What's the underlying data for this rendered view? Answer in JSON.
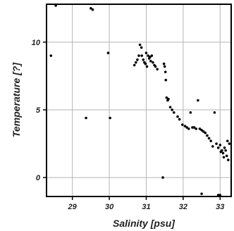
{
  "chart_data": {
    "type": "scatter",
    "title": "",
    "xlabel": "Salinity [psu]",
    "ylabel": "Temperature [?]",
    "xlim": [
      28.3,
      33.3
    ],
    "ylim": [
      -1.4,
      12.8
    ],
    "xticks": [
      29,
      30,
      31,
      32,
      33
    ],
    "yticks": [
      0,
      5,
      10
    ],
    "grid": true,
    "marker_color": "#000000",
    "series": [
      {
        "points": [
          [
            28.42,
            9.0
          ],
          [
            28.55,
            12.7
          ],
          [
            29.37,
            4.4
          ],
          [
            29.5,
            12.5
          ],
          [
            29.55,
            12.4
          ],
          [
            29.97,
            9.2
          ],
          [
            30.02,
            4.4
          ],
          [
            30.68,
            8.3
          ],
          [
            30.72,
            8.5
          ],
          [
            30.76,
            8.7
          ],
          [
            30.8,
            9.0
          ],
          [
            30.83,
            9.8
          ],
          [
            30.87,
            9.6
          ],
          [
            30.88,
            9.0
          ],
          [
            30.92,
            8.7
          ],
          [
            30.95,
            8.5
          ],
          [
            30.98,
            8.4
          ],
          [
            31.0,
            9.2
          ],
          [
            31.02,
            8.2
          ],
          [
            31.05,
            9.0
          ],
          [
            31.08,
            8.8
          ],
          [
            31.1,
            8.9
          ],
          [
            31.12,
            8.6
          ],
          [
            31.15,
            9.0
          ],
          [
            31.18,
            8.5
          ],
          [
            31.22,
            8.3
          ],
          [
            31.25,
            8.2
          ],
          [
            31.3,
            8.0
          ],
          [
            31.45,
            0.0
          ],
          [
            31.48,
            8.4
          ],
          [
            31.5,
            8.2
          ],
          [
            31.52,
            7.8
          ],
          [
            31.53,
            7.2
          ],
          [
            31.55,
            5.9
          ],
          [
            31.58,
            5.7
          ],
          [
            31.6,
            5.8
          ],
          [
            31.65,
            5.2
          ],
          [
            31.7,
            5.0
          ],
          [
            31.75,
            4.8
          ],
          [
            31.85,
            4.5
          ],
          [
            31.9,
            4.3
          ],
          [
            31.98,
            3.9
          ],
          [
            32.05,
            3.8
          ],
          [
            32.1,
            3.7
          ],
          [
            32.15,
            3.6
          ],
          [
            32.2,
            4.8
          ],
          [
            32.25,
            3.7
          ],
          [
            32.3,
            3.7
          ],
          [
            32.35,
            3.6
          ],
          [
            32.4,
            5.7
          ],
          [
            32.45,
            3.6
          ],
          [
            32.5,
            3.5
          ],
          [
            32.5,
            -1.2
          ],
          [
            32.55,
            3.4
          ],
          [
            32.6,
            3.3
          ],
          [
            32.65,
            3.1
          ],
          [
            32.7,
            2.9
          ],
          [
            32.75,
            2.7
          ],
          [
            32.8,
            2.3
          ],
          [
            32.85,
            4.8
          ],
          [
            32.9,
            2.5
          ],
          [
            32.95,
            2.2
          ],
          [
            33.0,
            2.4
          ],
          [
            33.02,
            1.9
          ],
          [
            33.05,
            2.0
          ],
          [
            33.08,
            1.8
          ],
          [
            33.1,
            1.5
          ],
          [
            33.12,
            2.2
          ],
          [
            33.15,
            2.0
          ],
          [
            33.18,
            1.6
          ],
          [
            33.2,
            2.7
          ],
          [
            33.22,
            1.3
          ],
          [
            33.25,
            2.5
          ],
          [
            32.95,
            -1.3
          ],
          [
            33.0,
            -1.3
          ]
        ]
      }
    ]
  }
}
